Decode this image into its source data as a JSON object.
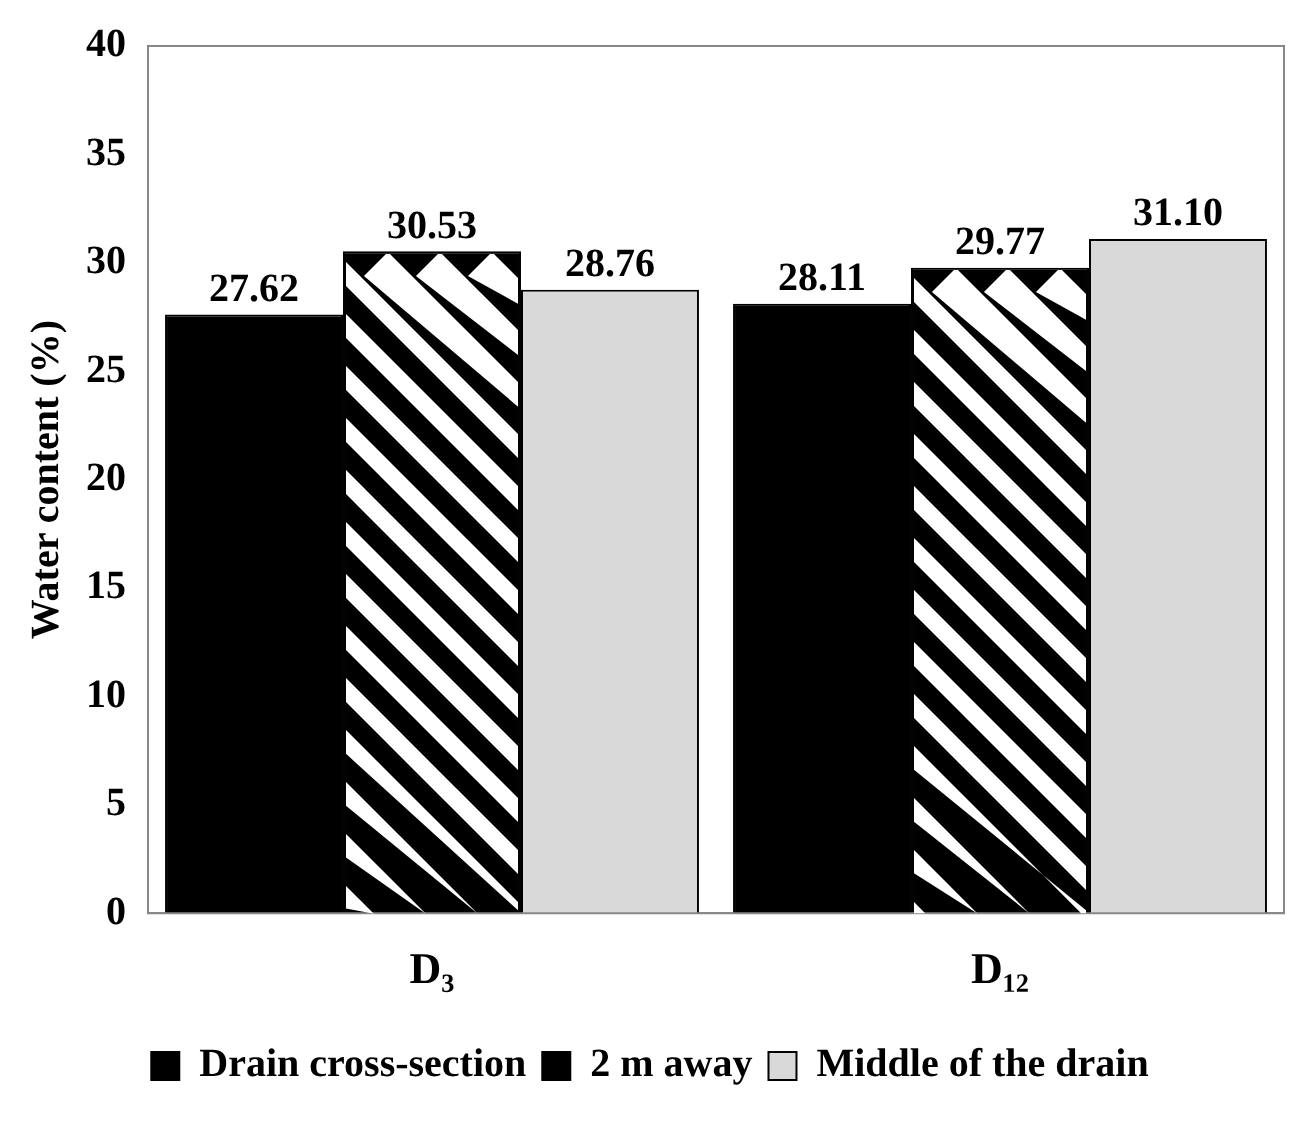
{
  "chart_data": {
    "type": "bar",
    "ylabel": "Water content (%)",
    "categories": [
      "D₃",
      "D₁₂"
    ],
    "series": [
      {
        "name": "Drain cross-section",
        "color": "#000000",
        "values": [
          27.62,
          28.11
        ],
        "value_labels": [
          "27.62",
          "28.11"
        ]
      },
      {
        "name": "2 m away",
        "color": "#000000",
        "values": [
          30.53,
          29.77
        ],
        "value_labels": [
          "30.53",
          "29.77"
        ]
      },
      {
        "name": "Middle of the drain",
        "color": "#d9d9d9",
        "values": [
          28.76,
          31.1
        ],
        "value_labels": [
          "28.76",
          "31.10"
        ]
      }
    ],
    "ylim": [
      0,
      40
    ],
    "yticks": [
      0,
      5,
      10,
      15,
      20,
      25,
      30,
      35,
      40
    ],
    "grid": false,
    "legend": "bottom"
  }
}
